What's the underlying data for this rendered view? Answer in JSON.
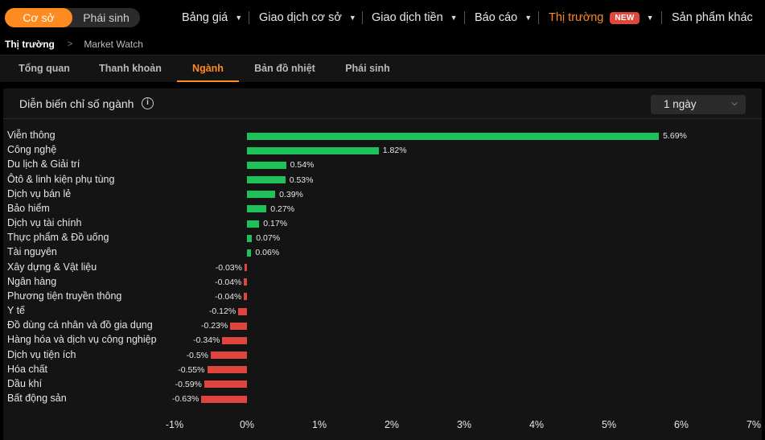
{
  "topnav": {
    "segment": {
      "active": "Cơ sở",
      "inactive": "Phái sinh"
    },
    "menus": [
      {
        "label": "Bảng giá"
      },
      {
        "label": "Giao dịch cơ sở"
      },
      {
        "label": "Giao dịch tiền"
      },
      {
        "label": "Báo cáo"
      },
      {
        "label": "Thị trường",
        "badge": "NEW"
      },
      {
        "label": "Sản phẩm khác"
      }
    ]
  },
  "breadcrumb": {
    "current": "Thị trường",
    "item": "Market Watch"
  },
  "tabs": [
    {
      "label": "Tổng quan"
    },
    {
      "label": "Thanh khoản"
    },
    {
      "label": "Ngành"
    },
    {
      "label": "Bản đồ nhiệt"
    },
    {
      "label": "Phái sinh"
    }
  ],
  "panel": {
    "title": "Diễn biến chỉ số ngành",
    "period": "1 ngày"
  },
  "colors": {
    "positive": "#1fc15a",
    "negative": "#e0443e",
    "accent": "#ff8a1f"
  },
  "chart_data": {
    "type": "bar",
    "orientation": "horizontal",
    "categories": [
      "Viễn thông",
      "Công nghệ",
      "Du lịch & Giải trí",
      "Ôtô & linh kiện phụ tùng",
      "Dịch vụ bán lẻ",
      "Bảo hiểm",
      "Dịch vụ tài chính",
      "Thực phẩm & Đồ uống",
      "Tài nguyên",
      "Xây dựng & Vật liệu",
      "Ngân hàng",
      "Phương tiện truyền thông",
      "Y tế",
      "Đồ dùng cá nhân và đồ gia dụng",
      "Hàng hóa và dịch vụ công nghiệp",
      "Dịch vụ tiện ích",
      "Hóa chất",
      "Dầu khí",
      "Bất động sản"
    ],
    "values": [
      5.69,
      1.82,
      0.54,
      0.53,
      0.39,
      0.27,
      0.17,
      0.07,
      0.06,
      -0.03,
      -0.04,
      -0.04,
      -0.12,
      -0.23,
      -0.34,
      -0.5,
      -0.55,
      -0.59,
      -0.63
    ],
    "value_labels": [
      "5.69%",
      "1.82%",
      "0.54%",
      "0.53%",
      "0.39%",
      "0.27%",
      "0.17%",
      "0.07%",
      "0.06%",
      "-0.03%",
      "-0.04%",
      "-0.04%",
      "-0.12%",
      "-0.23%",
      "-0.34%",
      "-0.5%",
      "-0.55%",
      "-0.59%",
      "-0.63%"
    ],
    "xlim": [
      -1,
      7
    ],
    "x_ticks": [
      "-1%",
      "0%",
      "1%",
      "2%",
      "3%",
      "4%",
      "5%",
      "6%",
      "7%"
    ],
    "grid": false
  }
}
